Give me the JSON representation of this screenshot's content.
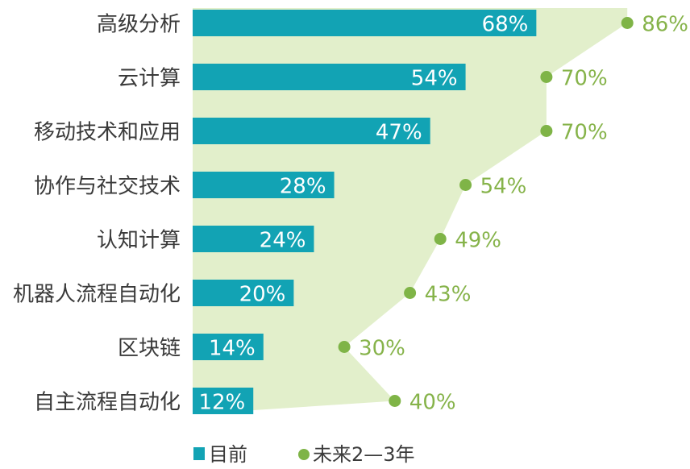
{
  "chart_data": {
    "type": "bar",
    "orientation": "horizontal",
    "categories": [
      "高级分析",
      "云计算",
      "移动技术和应用",
      "协作与社交技术",
      "认知计算",
      "机器人流程自动化",
      "区块链",
      "自主流程自动化"
    ],
    "series": [
      {
        "name": "目前",
        "kind": "bar",
        "color": "#12a3b4",
        "values": [
          68,
          54,
          47,
          28,
          24,
          20,
          14,
          12
        ],
        "labels": [
          "68%",
          "54%",
          "47%",
          "28%",
          "24%",
          "20%",
          "14%",
          "12%"
        ]
      },
      {
        "name": "未来2—3年",
        "kind": "area-line-points",
        "color": "#7fb447",
        "fill": "#e2efcb",
        "values": [
          86,
          70,
          70,
          54,
          49,
          43,
          30,
          40
        ],
        "labels": [
          "86%",
          "70%",
          "70%",
          "54%",
          "49%",
          "43%",
          "30%",
          "40%"
        ]
      }
    ],
    "xlim": [
      0,
      100
    ],
    "grid": false,
    "legend_position": "bottom-center"
  }
}
